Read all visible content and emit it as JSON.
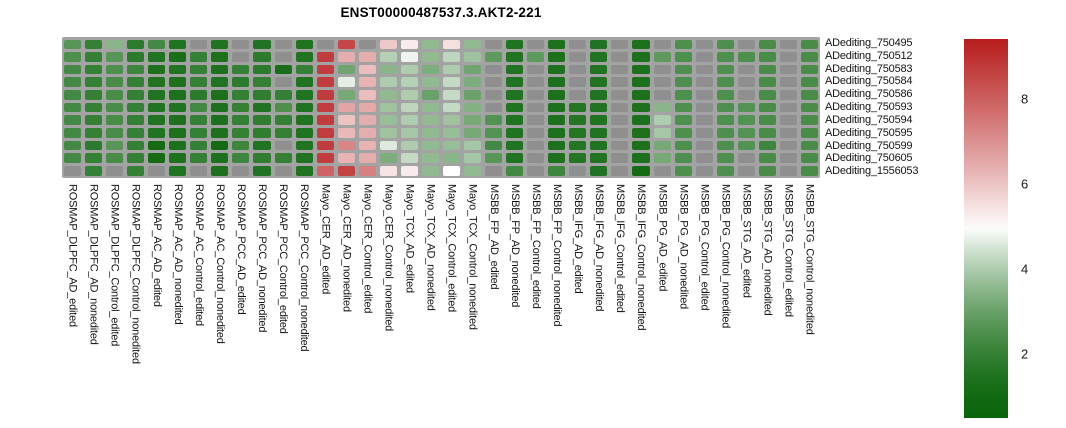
{
  "figure": {
    "title": "ENST00000487537.3.AKT2-221"
  },
  "chart_data": {
    "type": "heatmap",
    "title": "ENST00000487537.3.AKT2-221",
    "rows": [
      "ADediting_750495",
      "ADediting_750512",
      "ADediting_750583",
      "ADediting_750584",
      "ADediting_750586",
      "ADediting_750593",
      "ADediting_750594",
      "ADediting_750595",
      "ADediting_750599",
      "ADediting_750605",
      "ADediting_1556053"
    ],
    "columns": [
      "ROSMAP_DLPFC_AD_edited",
      "ROSMAP_DLPFC_AD_nonedited",
      "ROSMAP_DLPFC_Control_edited",
      "ROSMAP_DLPFC_Control_nonedited",
      "ROSMAP_AC_AD_edited",
      "ROSMAP_AC_AD_nonedited",
      "ROSMAP_AC_Control_edited",
      "ROSMAP_AC_Control_nonedited",
      "ROSMAP_PCC_AD_edited",
      "ROSMAP_PCC_AD_nonedited",
      "ROSMAP_PCC_Control_edited",
      "ROSMAP_PCC_Control_nonedited",
      "Mayo_CER_AD_edited",
      "Mayo_CER_AD_nonedited",
      "Mayo_CER_Control_edited",
      "Mayo_CER_Control_nonedited",
      "Mayo_TCX_AD_edited",
      "Mayo_TCX_AD_nonedited",
      "Mayo_TCX_Control_edited",
      "Mayo_TCX_Control_nonedited",
      "MSBB_FP_AD_edited",
      "MSBB_FP_AD_nonedited",
      "MSBB_FP_Control_edited",
      "MSBB_FP_Control_nonedited",
      "MSBB_IFG_AD_edited",
      "MSBB_IFG_AD_nonedited",
      "MSBB_IFG_Control_edited",
      "MSBB_IFG_Control_nonedited",
      "MSBB_PG_AD_edited",
      "MSBB_PG_AD_nonedited",
      "MSBB_PG_Control_edited",
      "MSBB_PG_Control_nonedited",
      "MSBB_STG_AD_edited",
      "MSBB_STG_AD_nonedited",
      "MSBB_STG_Control_edited",
      "MSBB_STG_Control_nonedited"
    ],
    "values": [
      [
        2.7,
        2.0,
        3.5,
        1.8,
        2.3,
        1.5,
        null,
        1.5,
        null,
        1.5,
        null,
        1.5,
        null,
        8.5,
        null,
        5.9,
        5.3,
        3.6,
        5.5,
        3.6,
        null,
        1.5,
        null,
        1.4,
        null,
        1.5,
        null,
        1.4,
        null,
        2.5,
        null,
        2.5,
        null,
        2.4,
        null,
        2.4
      ],
      [
        2.5,
        2.0,
        2.7,
        1.8,
        1.5,
        1.3,
        2.0,
        1.4,
        null,
        1.8,
        null,
        1.5,
        8.7,
        6.4,
        6.4,
        4.1,
        4.8,
        3.6,
        4.2,
        3.8,
        2.8,
        1.5,
        2.8,
        1.4,
        null,
        1.5,
        null,
        1.4,
        2.8,
        2.5,
        null,
        2.5,
        2.5,
        2.4,
        null,
        2.4
      ],
      [
        2.3,
        2.0,
        2.5,
        2.2,
        1.4,
        1.5,
        2.0,
        1.4,
        2.0,
        1.8,
        1.3,
        2.0,
        8.7,
        3.1,
        6.1,
        3.5,
        4.0,
        3.3,
        4.0,
        3.1,
        null,
        1.5,
        null,
        1.4,
        null,
        1.5,
        null,
        1.4,
        null,
        2.5,
        null,
        2.5,
        null,
        2.4,
        null,
        2.4
      ],
      [
        2.3,
        2.0,
        2.4,
        2.0,
        1.5,
        1.4,
        2.0,
        1.5,
        1.8,
        2.0,
        null,
        1.5,
        8.7,
        4.7,
        6.3,
        4.0,
        4.1,
        3.6,
        4.3,
        3.3,
        null,
        1.5,
        null,
        1.4,
        null,
        1.5,
        null,
        1.4,
        null,
        2.5,
        null,
        2.5,
        null,
        2.4,
        null,
        2.4
      ],
      [
        2.3,
        2.0,
        2.4,
        2.0,
        1.5,
        1.4,
        1.8,
        1.4,
        2.0,
        1.9,
        2.0,
        1.5,
        8.7,
        3.2,
        6.1,
        3.6,
        4.0,
        3.0,
        4.3,
        3.0,
        null,
        1.5,
        null,
        1.4,
        null,
        1.5,
        null,
        1.4,
        null,
        2.5,
        null,
        2.5,
        null,
        2.4,
        null,
        2.4
      ],
      [
        2.3,
        2.0,
        2.4,
        2.0,
        1.5,
        1.5,
        2.3,
        1.4,
        2.0,
        1.5,
        2.5,
        1.5,
        8.7,
        6.6,
        6.5,
        3.8,
        4.2,
        3.6,
        4.3,
        3.4,
        null,
        1.5,
        null,
        1.4,
        1.6,
        1.5,
        null,
        1.4,
        3.5,
        2.5,
        null,
        2.5,
        2.6,
        2.4,
        null,
        2.4
      ],
      [
        2.3,
        2.0,
        2.4,
        2.0,
        1.5,
        1.4,
        2.0,
        1.4,
        2.0,
        1.9,
        2.0,
        1.5,
        8.7,
        6.0,
        6.4,
        3.7,
        4.0,
        3.6,
        3.8,
        3.2,
        2.6,
        1.5,
        null,
        1.4,
        1.6,
        1.5,
        null,
        1.4,
        4.0,
        2.5,
        null,
        2.5,
        2.6,
        2.4,
        null,
        2.4
      ],
      [
        2.3,
        2.0,
        2.4,
        2.0,
        1.5,
        1.4,
        2.0,
        1.4,
        2.0,
        1.9,
        2.0,
        1.5,
        8.7,
        6.2,
        6.4,
        3.8,
        3.9,
        3.6,
        3.7,
        3.2,
        2.6,
        1.5,
        null,
        1.4,
        1.6,
        1.5,
        null,
        1.4,
        3.9,
        2.5,
        null,
        2.5,
        2.6,
        2.4,
        null,
        2.4
      ],
      [
        2.3,
        1.8,
        2.7,
        2.0,
        1.1,
        1.4,
        2.0,
        1.1,
        2.2,
        1.5,
        null,
        1.5,
        8.7,
        7.2,
        6.3,
        4.6,
        4.0,
        3.6,
        3.7,
        3.9,
        2.3,
        1.5,
        null,
        1.4,
        1.6,
        1.5,
        null,
        1.4,
        3.2,
        2.5,
        null,
        2.5,
        2.6,
        2.2,
        null,
        2.4
      ],
      [
        2.3,
        2.0,
        2.4,
        2.0,
        1.1,
        1.4,
        2.0,
        1.4,
        2.2,
        1.9,
        2.0,
        1.5,
        8.7,
        6.3,
        6.4,
        3.3,
        4.3,
        3.6,
        3.5,
        3.9,
        2.7,
        1.5,
        null,
        1.4,
        1.6,
        1.5,
        null,
        1.4,
        3.2,
        2.5,
        null,
        2.5,
        null,
        2.4,
        null,
        2.4
      ],
      [
        null,
        2.0,
        null,
        2.0,
        null,
        1.5,
        null,
        1.4,
        null,
        1.5,
        null,
        1.5,
        7.9,
        8.6,
        7.3,
        5.4,
        5.3,
        3.6,
        5.0,
        3.6,
        null,
        2.3,
        null,
        2.2,
        null,
        1.5,
        null,
        1.1,
        null,
        2.5,
        null,
        2.5,
        null,
        2.4,
        null,
        2.4
      ]
    ],
    "colorbar": {
      "position": "right",
      "ticks": [
        2,
        4,
        6,
        8
      ],
      "vmin": 0.5,
      "vmax": 9.4,
      "mid": 5.0,
      "low_color": "#0a650a",
      "mid_color": "#ffffff",
      "high_color": "#b71c1c",
      "na_color": "#8f8f8f",
      "grid_background": "#a3a3a3"
    },
    "legend": null,
    "grid": "gray cell borders",
    "na_cells_shown_as": "gray"
  }
}
